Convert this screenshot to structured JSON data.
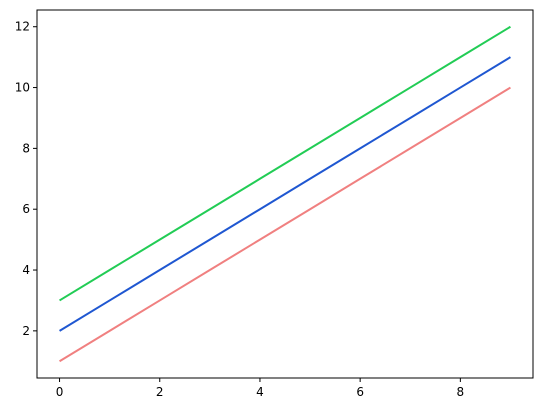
{
  "chart_data": {
    "type": "line",
    "title": "",
    "xlabel": "",
    "ylabel": "",
    "x": [
      0,
      1,
      2,
      3,
      4,
      5,
      6,
      7,
      8,
      9
    ],
    "series": [
      {
        "values": [
          1,
          2,
          3,
          4,
          5,
          6,
          7,
          8,
          9,
          10
        ],
        "color": "#f08080"
      },
      {
        "values": [
          2,
          3,
          4,
          5,
          6,
          7,
          8,
          9,
          10,
          11
        ],
        "color": "#1f57d1"
      },
      {
        "values": [
          3,
          4,
          5,
          6,
          7,
          8,
          9,
          10,
          11,
          12
        ],
        "color": "#22cc55"
      }
    ],
    "xlim": [
      -0.45,
      9.45
    ],
    "ylim": [
      0.45,
      12.55
    ],
    "xticks": [
      0,
      2,
      4,
      6,
      8
    ],
    "yticks": [
      2,
      4,
      6,
      8,
      10,
      12
    ],
    "grid": false,
    "legend": false
  }
}
